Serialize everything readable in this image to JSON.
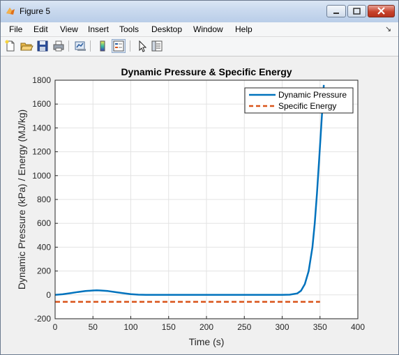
{
  "window": {
    "title": "Figure 5"
  },
  "menu": [
    "File",
    "Edit",
    "View",
    "Insert",
    "Tools",
    "Desktop",
    "Window",
    "Help"
  ],
  "toolbar": [
    "new-figure-icon",
    "open-file-icon",
    "save-icon",
    "print-icon",
    "link-plot-icon",
    "colorbar-icon",
    "legend-icon",
    "pointer-icon",
    "property-inspector-icon"
  ],
  "chart_data": {
    "type": "line",
    "title": "Dynamic Pressure & Specific Energy",
    "xlabel": "Time (s)",
    "ylabel": "Dynamic Pressure (kPa) / Energy (MJ/kg)",
    "xlim": [
      0,
      400
    ],
    "ylim": [
      -200,
      1800
    ],
    "xticks": [
      0,
      50,
      100,
      150,
      200,
      250,
      300,
      350,
      400
    ],
    "yticks": [
      -200,
      0,
      200,
      400,
      600,
      800,
      1000,
      1200,
      1400,
      1600,
      1800
    ],
    "grid": true,
    "legend_position": "top-right",
    "series": [
      {
        "name": "Dynamic Pressure",
        "color": "#0072bd",
        "style": "solid",
        "x": [
          0,
          10,
          20,
          30,
          40,
          50,
          55,
          60,
          70,
          80,
          90,
          100,
          110,
          120,
          150,
          200,
          250,
          300,
          310,
          320,
          325,
          330,
          335,
          340,
          343,
          346,
          349,
          352,
          354,
          355
        ],
        "y": [
          0,
          5,
          14,
          24,
          32,
          37,
          38,
          37,
          32,
          23,
          14,
          6,
          2,
          0,
          0,
          0,
          0,
          0,
          2,
          12,
          35,
          90,
          200,
          400,
          600,
          850,
          1150,
          1450,
          1650,
          1760
        ]
      },
      {
        "name": "Specific Energy",
        "color": "#d95319",
        "style": "dashed",
        "x": [
          0,
          100,
          200,
          300,
          350
        ],
        "y": [
          -58,
          -58,
          -58,
          -58,
          -58
        ]
      }
    ]
  }
}
